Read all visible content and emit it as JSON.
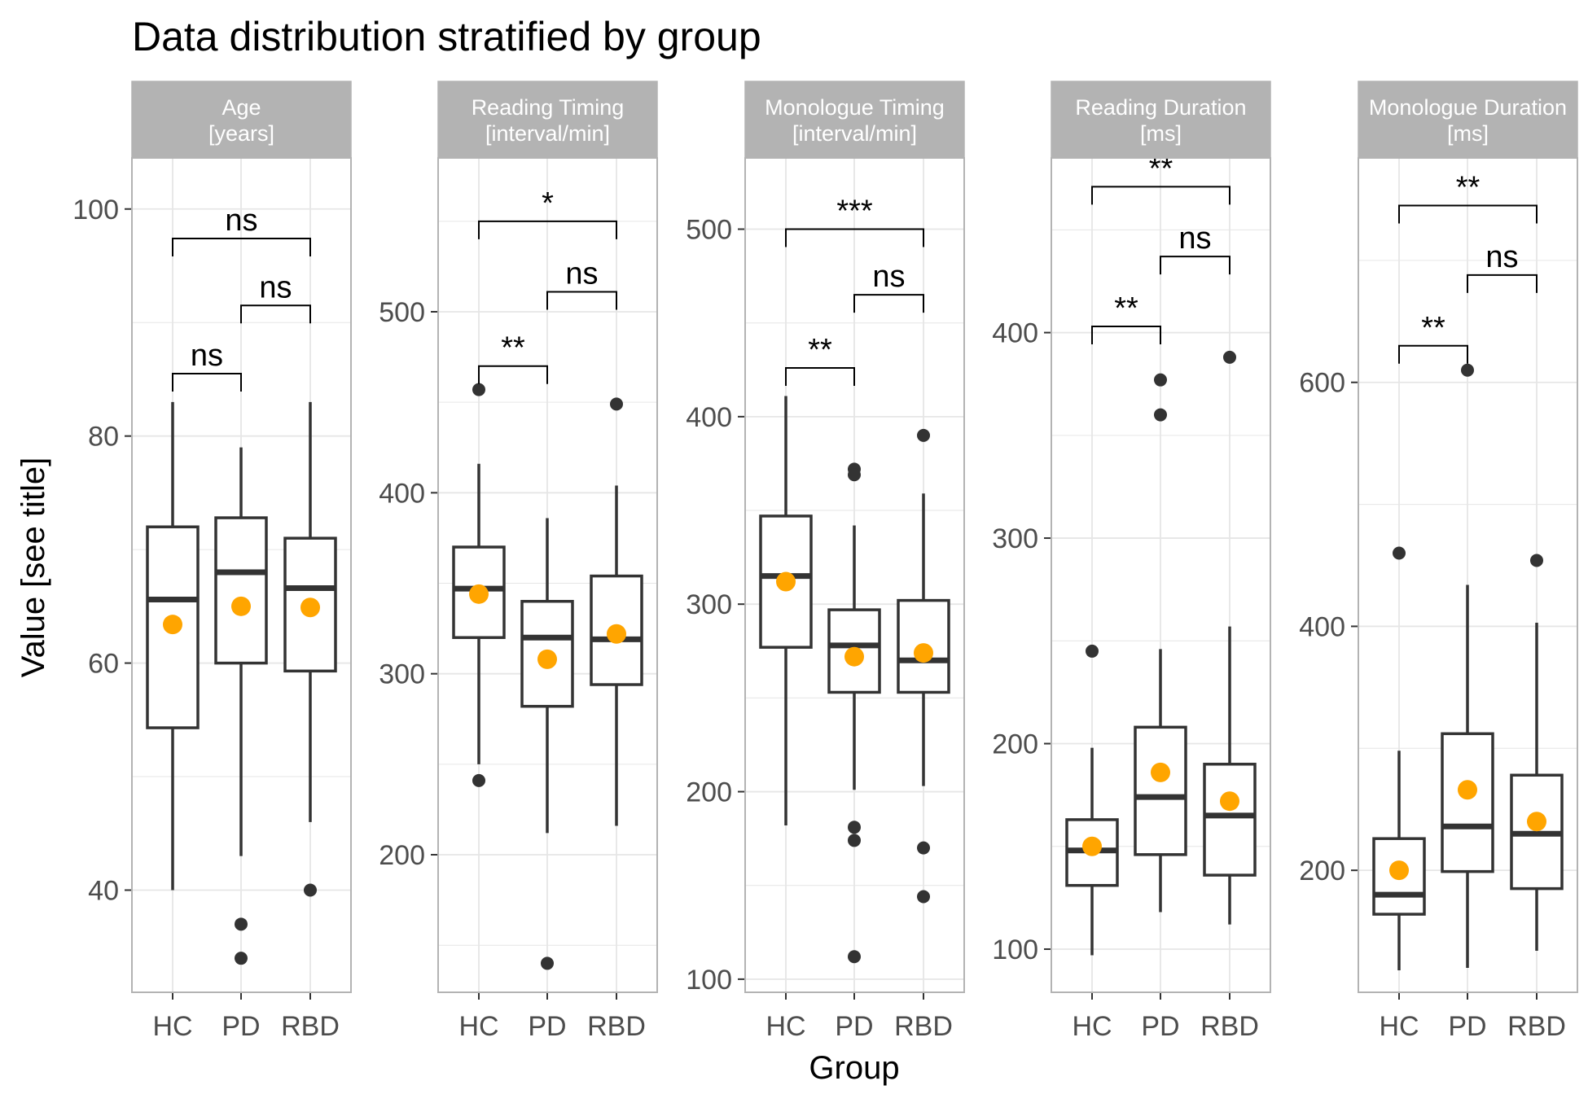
{
  "title": "Data distribution stratified by group",
  "xlabel": "Group",
  "ylabel": "Value [see title]",
  "colors": {
    "panel_border": "#b3b3b3",
    "strip_fill": "#b3b3b3",
    "strip_text": "#ffffff",
    "grid": "#e6e6e6",
    "box": "#333333",
    "outlier": "#333333",
    "mean": "#ffa500",
    "bracket": "#000000"
  },
  "chart_data": [
    {
      "type": "box",
      "title": "Age\n[years]",
      "categories": [
        "HC",
        "PD",
        "RBD"
      ],
      "ylim": [
        31.0,
        104.5
      ],
      "yticks": [
        40,
        60,
        80,
        100
      ],
      "boxes": [
        {
          "category": "HC",
          "whisker_low": 40,
          "q1": 54.3,
          "median": 65.6,
          "q3": 72.0,
          "whisker_high": 83,
          "mean": 63.4,
          "outliers": []
        },
        {
          "category": "PD",
          "whisker_low": 43,
          "q1": 60.0,
          "median": 68.0,
          "q3": 72.8,
          "whisker_high": 79,
          "mean": 65.0,
          "outliers": [
            37,
            34
          ]
        },
        {
          "category": "RBD",
          "whisker_low": 46,
          "q1": 59.3,
          "median": 66.6,
          "q3": 71.0,
          "whisker_high": 83,
          "mean": 64.9,
          "outliers": [
            40
          ]
        }
      ],
      "comparisons": [
        {
          "from": "HC",
          "to": "PD",
          "y": 85.5,
          "label": "ns"
        },
        {
          "from": "PD",
          "to": "RBD",
          "y": 91.5,
          "label": "ns"
        },
        {
          "from": "HC",
          "to": "RBD",
          "y": 97.4,
          "label": "ns"
        }
      ]
    },
    {
      "type": "box",
      "title": "Reading Timing\n[interval/min]",
      "categories": [
        "HC",
        "PD",
        "RBD"
      ],
      "ylim": [
        124,
        585
      ],
      "yticks": [
        200,
        300,
        400,
        500
      ],
      "boxes": [
        {
          "category": "HC",
          "whisker_low": 250,
          "q1": 320,
          "median": 347,
          "q3": 370,
          "whisker_high": 416,
          "mean": 344,
          "outliers": [
            457,
            241
          ]
        },
        {
          "category": "PD",
          "whisker_low": 212,
          "q1": 282,
          "median": 320,
          "q3": 340,
          "whisker_high": 386,
          "mean": 308,
          "outliers": [
            140
          ]
        },
        {
          "category": "RBD",
          "whisker_low": 216,
          "q1": 294,
          "median": 319,
          "q3": 354,
          "whisker_high": 404,
          "mean": 322,
          "outliers": [
            449
          ]
        }
      ],
      "comparisons": [
        {
          "from": "HC",
          "to": "PD",
          "y": 470,
          "label": "**"
        },
        {
          "from": "PD",
          "to": "RBD",
          "y": 511,
          "label": "ns"
        },
        {
          "from": "HC",
          "to": "RBD",
          "y": 550,
          "label": "*"
        }
      ]
    },
    {
      "type": "box",
      "title": "Monologue Timing\n[interval/min]",
      "categories": [
        "HC",
        "PD",
        "RBD"
      ],
      "ylim": [
        93,
        538
      ],
      "yticks": [
        100,
        200,
        300,
        400,
        500
      ],
      "boxes": [
        {
          "category": "HC",
          "whisker_low": 182,
          "q1": 277,
          "median": 315,
          "q3": 347,
          "whisker_high": 411,
          "mean": 312,
          "outliers": []
        },
        {
          "category": "PD",
          "whisker_low": 201,
          "q1": 253,
          "median": 278,
          "q3": 297,
          "whisker_high": 342,
          "mean": 272,
          "outliers": [
            372,
            369,
            181,
            174,
            112
          ]
        },
        {
          "category": "RBD",
          "whisker_low": 203,
          "q1": 253,
          "median": 270,
          "q3": 302,
          "whisker_high": 359,
          "mean": 274,
          "outliers": [
            390,
            170,
            144
          ]
        }
      ],
      "comparisons": [
        {
          "from": "HC",
          "to": "PD",
          "y": 426,
          "label": "**"
        },
        {
          "from": "PD",
          "to": "RBD",
          "y": 465,
          "label": "ns"
        },
        {
          "from": "HC",
          "to": "RBD",
          "y": 500,
          "label": "***"
        }
      ]
    },
    {
      "type": "box",
      "title": "Reading Duration\n[ms]",
      "categories": [
        "HC",
        "PD",
        "RBD"
      ],
      "ylim": [
        79,
        485
      ],
      "yticks": [
        100,
        200,
        300,
        400
      ],
      "boxes": [
        {
          "category": "HC",
          "whisker_low": 97,
          "q1": 131,
          "median": 148,
          "q3": 163,
          "whisker_high": 198,
          "mean": 150,
          "outliers": [
            245
          ]
        },
        {
          "category": "PD",
          "whisker_low": 118,
          "q1": 146,
          "median": 174,
          "q3": 208,
          "whisker_high": 246,
          "mean": 186,
          "outliers": [
            377,
            360
          ]
        },
        {
          "category": "RBD",
          "whisker_low": 112,
          "q1": 136,
          "median": 165,
          "q3": 190,
          "whisker_high": 257,
          "mean": 172,
          "outliers": [
            388
          ]
        }
      ],
      "comparisons": [
        {
          "from": "HC",
          "to": "PD",
          "y": 403,
          "label": "**"
        },
        {
          "from": "PD",
          "to": "RBD",
          "y": 437,
          "label": "ns"
        },
        {
          "from": "HC",
          "to": "RBD",
          "y": 471,
          "label": "**"
        }
      ]
    },
    {
      "type": "box",
      "title": "Monologue Duration\n[ms]",
      "categories": [
        "HC",
        "PD",
        "RBD"
      ],
      "ylim": [
        100,
        784
      ],
      "yticks": [
        200,
        400,
        600
      ],
      "boxes": [
        {
          "category": "HC",
          "whisker_low": 118,
          "q1": 164,
          "median": 180,
          "q3": 226,
          "whisker_high": 298,
          "mean": 200,
          "outliers": [
            460
          ]
        },
        {
          "category": "PD",
          "whisker_low": 120,
          "q1": 199,
          "median": 236,
          "q3": 312,
          "whisker_high": 434,
          "mean": 266,
          "outliers": [
            610
          ]
        },
        {
          "category": "RBD",
          "whisker_low": 134,
          "q1": 185,
          "median": 230,
          "q3": 278,
          "whisker_high": 403,
          "mean": 240,
          "outliers": [
            454
          ]
        }
      ],
      "comparisons": [
        {
          "from": "HC",
          "to": "PD",
          "y": 630,
          "label": "**"
        },
        {
          "from": "PD",
          "to": "RBD",
          "y": 688,
          "label": "ns"
        },
        {
          "from": "HC",
          "to": "RBD",
          "y": 745,
          "label": "**"
        }
      ]
    }
  ]
}
